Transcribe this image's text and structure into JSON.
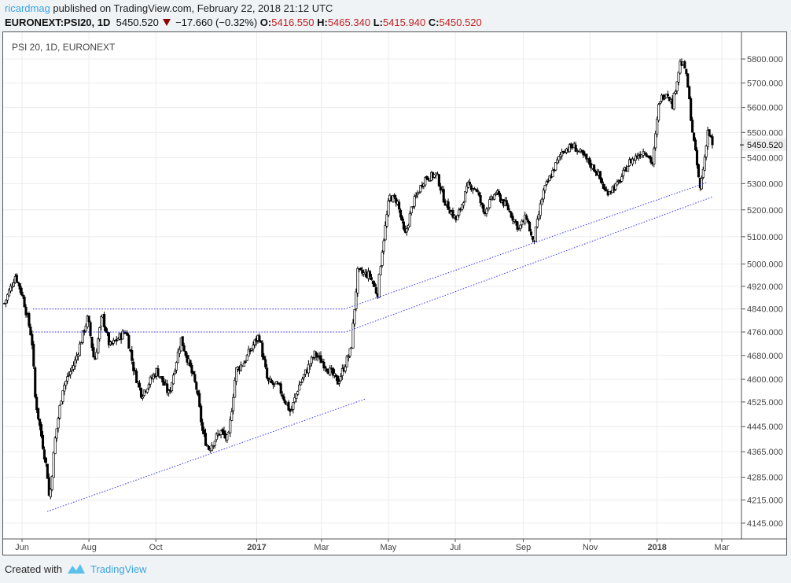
{
  "header": {
    "user": "ricardmag",
    "published": "published on TradingView.com, February 22, 2018 21:12 UTC",
    "symbol": "EURONEXT:PSI20, 1D",
    "last": "5450.520",
    "change": "−17.660 (−0.32%)",
    "o_label": "O:",
    "o": "5416.550",
    "h_label": "H:",
    "h": "5465.340",
    "l_label": "L:",
    "l": "5415.940",
    "c_label": "C:",
    "c": "5450.520"
  },
  "colors": {
    "accent": "#3aa3e3",
    "down": "#c21f1f",
    "trend": "#3333ff"
  },
  "footer": {
    "created_with": "Created with",
    "brand": "TradingView"
  },
  "chart_data": {
    "type": "candlestick",
    "title": "PSI 20, 1D, EURONEXT",
    "scale": "log",
    "ylim": [
      4100,
      5900
    ],
    "start_date": "2016-06-01",
    "x_unit": "days since start_date",
    "x_ticks": [
      {
        "label": "Jun",
        "t": 0,
        "bold": false
      },
      {
        "label": "Aug",
        "t": 61,
        "bold": false
      },
      {
        "label": "Oct",
        "t": 122,
        "bold": false
      },
      {
        "label": "2017",
        "t": 214,
        "bold": true
      },
      {
        "label": "Mar",
        "t": 273,
        "bold": false
      },
      {
        "label": "May",
        "t": 334,
        "bold": false
      },
      {
        "label": "Jul",
        "t": 395,
        "bold": false
      },
      {
        "label": "Sep",
        "t": 457,
        "bold": false
      },
      {
        "label": "Nov",
        "t": 518,
        "bold": false
      },
      {
        "label": "2018",
        "t": 579,
        "bold": true
      },
      {
        "label": "Mar",
        "t": 638,
        "bold": false
      }
    ],
    "y_ticks": [
      "5800.000",
      "5700.000",
      "5600.000",
      "5500.000",
      "5400.000",
      "5300.000",
      "5200.000",
      "5100.000",
      "5000.000",
      "4920.000",
      "4840.000",
      "4760.000",
      "4680.000",
      "4600.000",
      "4525.000",
      "4445.000",
      "4365.000",
      "4285.000",
      "4215.000",
      "4145.000"
    ],
    "last_price_label": "5450.520",
    "last_price": 5450.52,
    "close_path": [
      [
        -16,
        4860
      ],
      [
        -6,
        4960
      ],
      [
        1,
        4880
      ],
      [
        9,
        4735
      ],
      [
        12,
        4540
      ],
      [
        16,
        4450
      ],
      [
        23,
        4300
      ],
      [
        25,
        4210
      ],
      [
        30,
        4400
      ],
      [
        37,
        4570
      ],
      [
        48,
        4655
      ],
      [
        60,
        4810
      ],
      [
        66,
        4655
      ],
      [
        73,
        4820
      ],
      [
        80,
        4710
      ],
      [
        95,
        4765
      ],
      [
        102,
        4630
      ],
      [
        109,
        4550
      ],
      [
        123,
        4630
      ],
      [
        134,
        4550
      ],
      [
        145,
        4735
      ],
      [
        152,
        4655
      ],
      [
        159,
        4570
      ],
      [
        165,
        4420
      ],
      [
        170,
        4375
      ],
      [
        181,
        4430
      ],
      [
        188,
        4400
      ],
      [
        195,
        4630
      ],
      [
        202,
        4655
      ],
      [
        216,
        4750
      ],
      [
        224,
        4590
      ],
      [
        234,
        4575
      ],
      [
        245,
        4490
      ],
      [
        252,
        4575
      ],
      [
        267,
        4685
      ],
      [
        277,
        4645
      ],
      [
        288,
        4590
      ],
      [
        300,
        4700
      ],
      [
        303,
        4835
      ],
      [
        306,
        4970
      ],
      [
        317,
        4960
      ],
      [
        324,
        4890
      ],
      [
        328,
        5040
      ],
      [
        335,
        5250
      ],
      [
        342,
        5235
      ],
      [
        349,
        5100
      ],
      [
        356,
        5220
      ],
      [
        367,
        5320
      ],
      [
        378,
        5335
      ],
      [
        385,
        5235
      ],
      [
        396,
        5160
      ],
      [
        407,
        5295
      ],
      [
        414,
        5280
      ],
      [
        421,
        5190
      ],
      [
        432,
        5265
      ],
      [
        443,
        5205
      ],
      [
        453,
        5130
      ],
      [
        460,
        5175
      ],
      [
        466,
        5070
      ],
      [
        475,
        5265
      ],
      [
        482,
        5330
      ],
      [
        493,
        5430
      ],
      [
        503,
        5445
      ],
      [
        514,
        5395
      ],
      [
        525,
        5340
      ],
      [
        532,
        5265
      ],
      [
        543,
        5295
      ],
      [
        554,
        5385
      ],
      [
        568,
        5430
      ],
      [
        575,
        5375
      ],
      [
        581,
        5630
      ],
      [
        588,
        5665
      ],
      [
        593,
        5610
      ],
      [
        600,
        5785
      ],
      [
        604,
        5770
      ],
      [
        607,
        5685
      ],
      [
        611,
        5510
      ],
      [
        615,
        5385
      ],
      [
        618,
        5275
      ],
      [
        622,
        5385
      ],
      [
        625,
        5510
      ],
      [
        630,
        5450.52
      ]
    ],
    "trendlines": [
      {
        "name": "support-2016",
        "points": [
          [
            23,
            4180
          ],
          [
            313,
            4535
          ]
        ]
      },
      {
        "name": "upper-channel",
        "points": [
          [
            10,
            4840
          ],
          [
            294,
            4840
          ],
          [
            625,
            5305
          ]
        ]
      },
      {
        "name": "lower-channel",
        "points": [
          [
            10,
            4760
          ],
          [
            295,
            4760
          ],
          [
            630,
            5250
          ]
        ]
      }
    ]
  }
}
